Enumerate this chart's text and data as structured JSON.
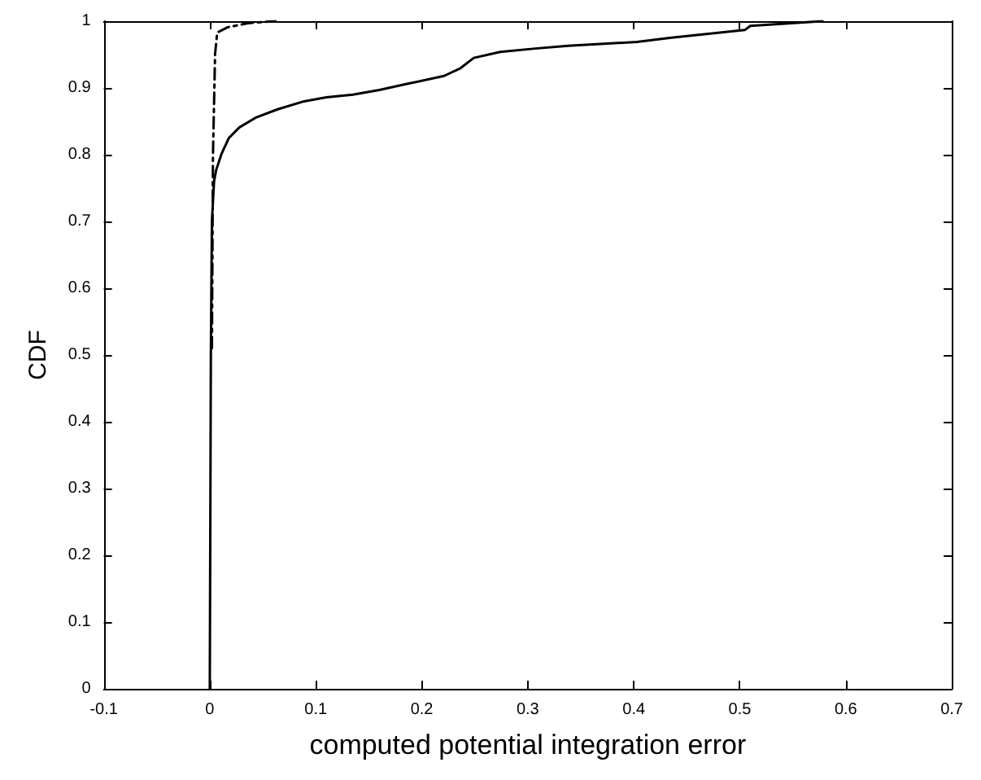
{
  "chart_data": {
    "type": "line",
    "xlabel": "computed potential integration error",
    "ylabel": "CDF",
    "xlim": [
      -0.1,
      0.7
    ],
    "xticks": [
      -0.1,
      0,
      0.1,
      0.2,
      0.3,
      0.4,
      0.5,
      0.6,
      0.7
    ],
    "ylim": [
      0,
      1
    ],
    "yticks": [
      0,
      0.1,
      0.2,
      0.3,
      0.4,
      0.5,
      0.6,
      0.7,
      0.8,
      0.9,
      1
    ],
    "grid": false,
    "marker": "none",
    "series": [
      {
        "color": "#000000",
        "line_style": "solid",
        "x": [
          0,
          0.001,
          0.002,
          0.004,
          0.006,
          0.011,
          0.018,
          0.028,
          0.044,
          0.064,
          0.089,
          0.11,
          0.135,
          0.16,
          0.186,
          0.221,
          0.236,
          0.249,
          0.274,
          0.307,
          0.338,
          0.403,
          0.434,
          0.505,
          0.51,
          0.54,
          0.578
        ],
        "values": [
          0,
          0.5,
          0.7,
          0.76,
          0.777,
          0.801,
          0.825,
          0.841,
          0.856,
          0.868,
          0.88,
          0.886,
          0.89,
          0.897,
          0.906,
          0.918,
          0.929,
          0.945,
          0.954,
          0.959,
          0.963,
          0.969,
          0.975,
          0.987,
          0.993,
          0.996,
          1
        ]
      },
      {
        "color": "#000000",
        "line_style": "dashed",
        "x": [
          0.002,
          0.003,
          0.005,
          0.007,
          0.017,
          0.036,
          0.062
        ],
        "values": [
          0.51,
          0.8,
          0.951,
          0.983,
          0.991,
          0.997,
          1
        ]
      }
    ]
  }
}
